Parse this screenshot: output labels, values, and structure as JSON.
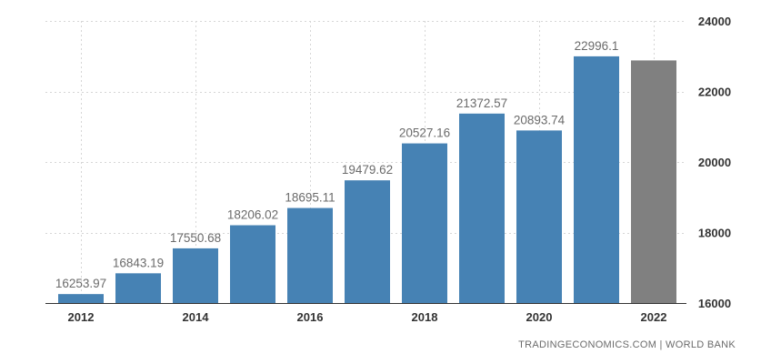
{
  "chart_data": {
    "type": "bar",
    "categories": [
      "2012",
      "2013",
      "2014",
      "2015",
      "2016",
      "2017",
      "2018",
      "2019",
      "2020",
      "2021",
      "2022"
    ],
    "values": [
      16253.97,
      16843.19,
      17550.68,
      18206.02,
      18695.11,
      19479.62,
      20527.16,
      21372.57,
      20893.74,
      22996.1,
      22880
    ],
    "data_labels": [
      "16253.97",
      "16843.19",
      "17550.68",
      "18206.02",
      "18695.11",
      "19479.62",
      "20527.16",
      "21372.57",
      "20893.74",
      "22996.1",
      ""
    ],
    "bar_colors": [
      "#4682b4",
      "#4682b4",
      "#4682b4",
      "#4682b4",
      "#4682b4",
      "#4682b4",
      "#4682b4",
      "#4682b4",
      "#4682b4",
      "#4682b4",
      "#808080"
    ],
    "x_tick_labels": [
      "2012",
      "2014",
      "2016",
      "2018",
      "2020",
      "2022"
    ],
    "y_ticks": [
      16000,
      18000,
      20000,
      22000,
      24000
    ],
    "y_tick_labels": [
      "16000",
      "18000",
      "20000",
      "22000",
      "24000"
    ],
    "ylim": [
      16000,
      24000
    ],
    "y_axis_position": "right",
    "grid": true,
    "title": "",
    "xlabel": "",
    "ylabel": ""
  },
  "source_text": "TRADINGECONOMICS.COM | WORLD BANK"
}
